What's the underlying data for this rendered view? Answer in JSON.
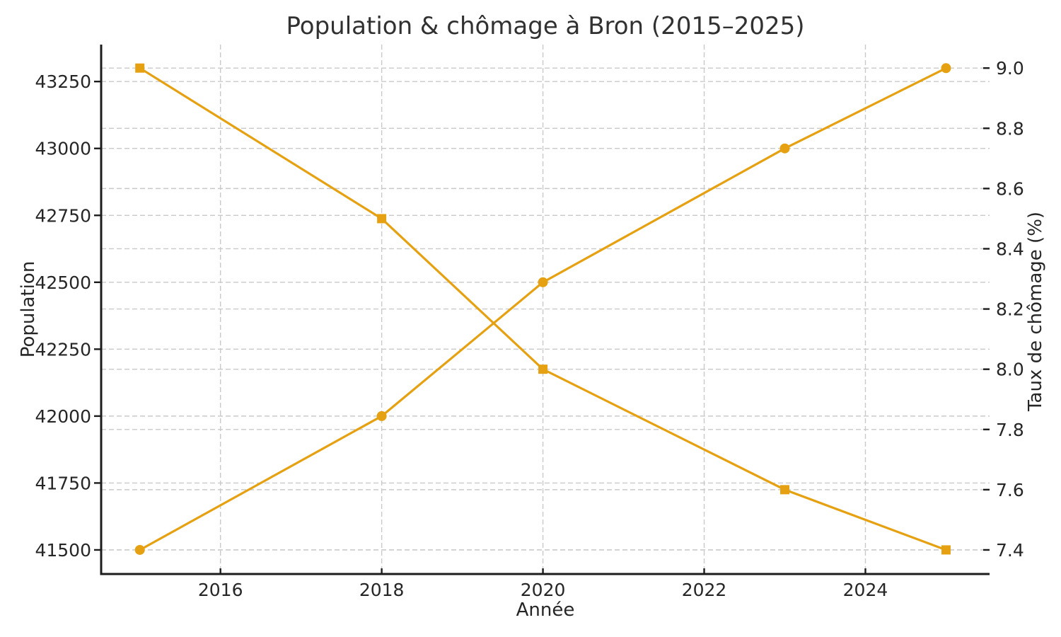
{
  "chart_data": {
    "type": "line",
    "title": "Population & chômage à Bron (2015–2025)",
    "xlabel": "Année",
    "ylabel_left": "Population",
    "ylabel_right": "Taux de chômage (%)",
    "x": [
      2015,
      2018,
      2020,
      2023,
      2025
    ],
    "series": [
      {
        "id": "population",
        "name": "Population",
        "axis": "left",
        "marker": "circle",
        "values": [
          41500,
          42000,
          42500,
          43000,
          43300
        ]
      },
      {
        "id": "taux-chomage",
        "name": "Taux de chômage (%)",
        "axis": "right",
        "marker": "square",
        "values": [
          9.0,
          8.5,
          8.0,
          7.6,
          7.4
        ]
      }
    ],
    "x_ticks": [
      2016,
      2018,
      2020,
      2022,
      2024
    ],
    "y_ticks_left": [
      41500,
      41750,
      42000,
      42250,
      42500,
      42750,
      43000,
      43250
    ],
    "y_ticks_right": [
      7.4,
      7.6,
      7.8,
      8.0,
      8.2,
      8.4,
      8.6,
      8.8,
      9.0
    ],
    "xlim": [
      2014.52,
      2025.54
    ],
    "ylim_left": [
      41410,
      43388
    ],
    "ylim_right": [
      7.32,
      9.078
    ],
    "grid": true,
    "legend": "none",
    "colors": {
      "series": "#E5A112",
      "grid": "#C9C9C9",
      "spine": "#1C1C1C",
      "text": "#262626",
      "title": "#313131",
      "background": "#FFFFFF"
    }
  }
}
